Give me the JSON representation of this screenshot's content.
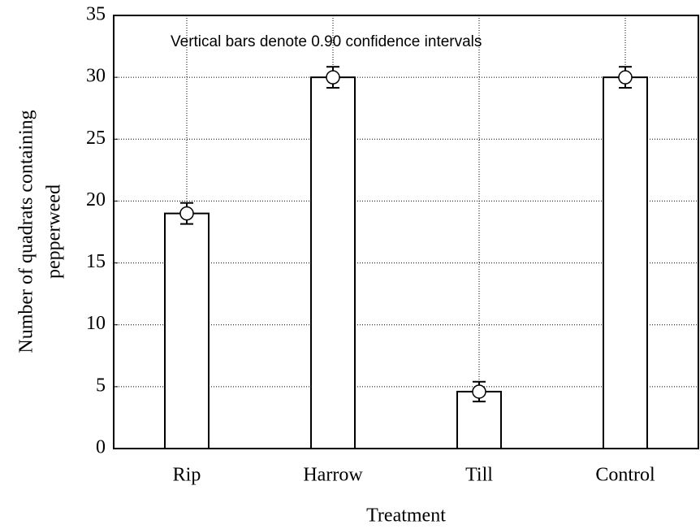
{
  "chart_data": {
    "type": "bar",
    "annotation": "Vertical bars denote 0.90 confidence intervals",
    "xlabel": "Treatment",
    "ylabel": [
      "Number of quadrats containing",
      "pepperweed"
    ],
    "categories": [
      "Rip",
      "Harrow",
      "Till",
      "Control"
    ],
    "values": [
      19,
      30,
      4.6,
      30
    ],
    "errors": [
      0.85,
      0.85,
      0.8,
      0.85
    ],
    "color": "#ffffff",
    "ylim": [
      0,
      35
    ],
    "yticks": [
      0,
      5,
      10,
      15,
      20,
      25,
      30,
      35
    ],
    "grid": true
  }
}
